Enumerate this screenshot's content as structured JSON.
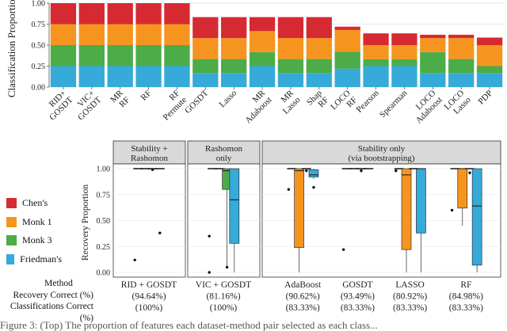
{
  "colors": {
    "chens": "#d62a33",
    "monk1": "#f5951f",
    "monk3": "#4cac48",
    "friedman": "#36aad9"
  },
  "chart_data": [
    {
      "type": "bar",
      "stacked": true,
      "ylabel": "Classification Proportion",
      "ylim": [
        0,
        1
      ],
      "yticks": [
        "0.00",
        "0.25",
        "0.50",
        "0.75",
        "1.00"
      ],
      "categories": [
        "RID+ GOSDT",
        "VIC+ GOSDT",
        "MR RF",
        "RF",
        "RF Permute",
        "GOSDT",
        "Lasso",
        "MR Adaboost",
        "MR Lasso",
        "Shap RF",
        "LOCO RF",
        "Pearson",
        "Spearman",
        "LOCO Adaboost",
        "LOCO Lasso",
        "PDP"
      ],
      "series": [
        {
          "name": "Friedman's",
          "color_key": "friedman",
          "values": [
            0.25,
            0.25,
            0.25,
            0.25,
            0.25,
            0.167,
            0.167,
            0.25,
            0.167,
            0.167,
            0.22,
            0.25,
            0.25,
            0.167,
            0.167,
            0.167
          ]
        },
        {
          "name": "Monk 3",
          "color_key": "monk3",
          "values": [
            0.25,
            0.25,
            0.25,
            0.25,
            0.25,
            0.167,
            0.167,
            0.167,
            0.167,
            0.167,
            0.2,
            0.083,
            0.083,
            0.25,
            0.167,
            0.083
          ]
        },
        {
          "name": "Monk 1",
          "color_key": "monk1",
          "values": [
            0.25,
            0.25,
            0.25,
            0.25,
            0.25,
            0.25,
            0.25,
            0.25,
            0.25,
            0.25,
            0.26,
            0.167,
            0.167,
            0.167,
            0.25,
            0.25
          ]
        },
        {
          "name": "Chen's",
          "color_key": "chens",
          "values": [
            0.25,
            0.25,
            0.25,
            0.25,
            0.25,
            0.25,
            0.25,
            0.167,
            0.25,
            0.25,
            0.04,
            0.14,
            0.14,
            0.04,
            0.04,
            0.09
          ]
        }
      ]
    },
    {
      "type": "box",
      "ylabel": "Recovery Proportion",
      "ylim": [
        0,
        1
      ],
      "yticks": [
        "0.00",
        "0.25",
        "0.50",
        "0.75",
        "1.00"
      ],
      "facet_strips": [
        "Stability +\nRashomon",
        "Rashomon\nonly",
        "Stability only\n(via bootstrapping)"
      ],
      "groups": [
        {
          "facet": 0,
          "method": "RID + GOSDT",
          "recovery": "(94.64%)",
          "classifications": "(100%)",
          "boxes": [
            {
              "series": "chens",
              "q1": 1,
              "median": 1,
              "q3": 1,
              "lo": 1,
              "hi": 1,
              "outliers": [
                0.12
              ]
            },
            {
              "series": "monk1",
              "q1": 1,
              "median": 1,
              "q3": 1,
              "lo": 1,
              "hi": 1,
              "outliers": []
            },
            {
              "series": "monk3",
              "q1": 1,
              "median": 1,
              "q3": 1,
              "lo": 1,
              "hi": 1,
              "outliers": [
                0.99
              ]
            },
            {
              "series": "friedman",
              "q1": 1,
              "median": 1,
              "q3": 1,
              "lo": 1,
              "hi": 1,
              "outliers": [
                0.38
              ]
            }
          ]
        },
        {
          "facet": 1,
          "method": "VIC + GOSDT",
          "recovery": "(81.16%)",
          "classifications": "(100%)",
          "boxes": [
            {
              "series": "chens",
              "q1": 1,
              "median": 1,
              "q3": 1,
              "lo": 1,
              "hi": 1,
              "outliers": [
                0.35,
                0.0
              ]
            },
            {
              "series": "monk1",
              "q1": 1,
              "median": 1,
              "q3": 1,
              "lo": 1,
              "hi": 1,
              "outliers": []
            },
            {
              "series": "monk3",
              "q1": 0.8,
              "median": 0.98,
              "q3": 1,
              "lo": 0.05,
              "hi": 1,
              "outliers": [
                0.05
              ]
            },
            {
              "series": "friedman",
              "q1": 0.28,
              "median": 0.7,
              "q3": 1,
              "lo": 0,
              "hi": 1,
              "outliers": []
            }
          ]
        },
        {
          "facet": 2,
          "method": "AdaBoost",
          "recovery": "(90.62%)",
          "classifications": "(83.33%)",
          "boxes": [
            {
              "series": "chens",
              "q1": 1,
              "median": 1,
              "q3": 1,
              "lo": 1,
              "hi": 1,
              "outliers": [
                0.8
              ]
            },
            {
              "series": "monk1",
              "q1": 0.24,
              "median": 0.98,
              "q3": 1,
              "lo": 0,
              "hi": 1,
              "outliers": []
            },
            {
              "series": "monk3",
              "q1": 1,
              "median": 1,
              "q3": 1,
              "lo": 1,
              "hi": 1,
              "outliers": [
                0.98
              ]
            },
            {
              "series": "friedman",
              "q1": 0.92,
              "median": 0.94,
              "q3": 0.99,
              "lo": 0.9,
              "hi": 1,
              "outliers": [
                0.82
              ]
            }
          ]
        },
        {
          "facet": 2,
          "method": "GOSDT",
          "recovery": "(93.49%)",
          "classifications": "(83.33%)",
          "boxes": [
            {
              "series": "chens",
              "q1": 1,
              "median": 1,
              "q3": 1,
              "lo": 1,
              "hi": 1,
              "outliers": [
                0.22
              ]
            },
            {
              "series": "monk1",
              "q1": 1,
              "median": 1,
              "q3": 1,
              "lo": 1,
              "hi": 1,
              "outliers": []
            },
            {
              "series": "monk3",
              "q1": 1,
              "median": 1,
              "q3": 1,
              "lo": 1,
              "hi": 1,
              "outliers": [
                0.98
              ]
            },
            {
              "series": "friedman",
              "q1": 1,
              "median": 1,
              "q3": 1,
              "lo": 1,
              "hi": 1,
              "outliers": []
            }
          ]
        },
        {
          "facet": 2,
          "method": "LASSO",
          "recovery": "(80.92%)",
          "classifications": "(83.33%)",
          "boxes": [
            {
              "series": "chens",
              "q1": 1,
              "median": 1,
              "q3": 1,
              "lo": 1,
              "hi": 1,
              "outliers": [
                0.98
              ]
            },
            {
              "series": "monk1",
              "q1": 0.22,
              "median": 0.94,
              "q3": 1,
              "lo": 0,
              "hi": 1,
              "outliers": []
            },
            {
              "series": "monk3",
              "q1": 1,
              "median": 1,
              "q3": 1,
              "lo": 1,
              "hi": 1,
              "outliers": []
            },
            {
              "series": "friedman",
              "q1": 0.38,
              "median": 1,
              "q3": 1,
              "lo": 0,
              "hi": 1,
              "outliers": []
            }
          ]
        },
        {
          "facet": 2,
          "method": "RF",
          "recovery": "(84.98%)",
          "classifications": "(83.33%)",
          "boxes": [
            {
              "series": "chens",
              "q1": 1,
              "median": 1,
              "q3": 1,
              "lo": 1,
              "hi": 1,
              "outliers": [
                0.6
              ]
            },
            {
              "series": "monk1",
              "q1": 0.62,
              "median": 1,
              "q3": 1,
              "lo": 0.45,
              "hi": 1,
              "outliers": []
            },
            {
              "series": "monk3",
              "q1": 1,
              "median": 1,
              "q3": 1,
              "lo": 1,
              "hi": 1,
              "outliers": [
                0.96
              ]
            },
            {
              "series": "friedman",
              "q1": 0.07,
              "median": 0.64,
              "q3": 1,
              "lo": 0,
              "hi": 1,
              "outliers": []
            }
          ]
        }
      ]
    }
  ],
  "legend": [
    {
      "label": "Chen's",
      "color_key": "chens"
    },
    {
      "label": "Monk 1",
      "color_key": "monk1"
    },
    {
      "label": "Monk 3",
      "color_key": "monk3"
    },
    {
      "label": "Friedman's",
      "color_key": "friedman"
    }
  ],
  "row_labels": {
    "method": "Method",
    "recovery": "Recovery Correct (%)",
    "classifications": "Classifications Correct (%)"
  },
  "caption": "Figure 3: (Top) The proportion of features each dataset-method pair selected as each class..."
}
